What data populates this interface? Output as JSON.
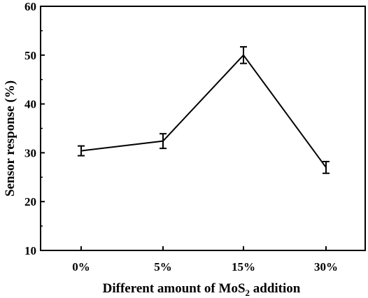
{
  "chart_data": {
    "type": "line",
    "title": "",
    "xlabel": "Different amount of MoS₂ addition",
    "xlabel_parts": {
      "before": "Different amount of MoS",
      "sub": "2",
      "after": " addition"
    },
    "ylabel": "Sensor response (%)",
    "categories": [
      "0%",
      "5%",
      "15%",
      "30%"
    ],
    "series": [
      {
        "values": [
          30.4,
          32.4,
          50.0,
          27.0
        ],
        "errors": [
          1.0,
          1.5,
          1.7,
          1.2
        ],
        "color": "#000000",
        "marker": "none"
      }
    ],
    "ylim": [
      10,
      60
    ],
    "yticks": [
      10,
      20,
      30,
      40,
      50,
      60
    ],
    "grid": false,
    "legend": "none"
  }
}
